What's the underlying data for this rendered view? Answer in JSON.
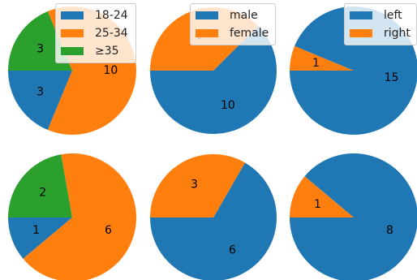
{
  "chart_data": [
    {
      "type": "pie",
      "categories": [
        "18-24",
        "25-34",
        "≥35"
      ],
      "values": [
        3,
        10,
        3
      ],
      "colors": [
        "#1f77b4",
        "#ff7f0e",
        "#2ca02c"
      ],
      "legend": "top"
    },
    {
      "type": "pie",
      "categories": [
        "male",
        "female"
      ],
      "values": [
        10,
        6
      ],
      "colors": [
        "#1f77b4",
        "#ff7f0e"
      ],
      "legend": "top"
    },
    {
      "type": "pie",
      "categories": [
        "left",
        "right"
      ],
      "values": [
        15,
        1
      ],
      "colors": [
        "#1f77b4",
        "#ff7f0e"
      ],
      "legend": "top-right"
    },
    {
      "type": "pie",
      "categories": [
        "18-24",
        "25-34",
        "≥35"
      ],
      "values": [
        1,
        6,
        2
      ],
      "colors": [
        "#1f77b4",
        "#ff7f0e",
        "#2ca02c"
      ],
      "legend": "none"
    },
    {
      "type": "pie",
      "categories": [
        "male",
        "female"
      ],
      "values": [
        6,
        3
      ],
      "colors": [
        "#1f77b4",
        "#ff7f0e"
      ],
      "legend": "none"
    },
    {
      "type": "pie",
      "categories": [
        "left",
        "right"
      ],
      "values": [
        8,
        1
      ],
      "colors": [
        "#1f77b4",
        "#ff7f0e"
      ],
      "legend": "none"
    }
  ]
}
